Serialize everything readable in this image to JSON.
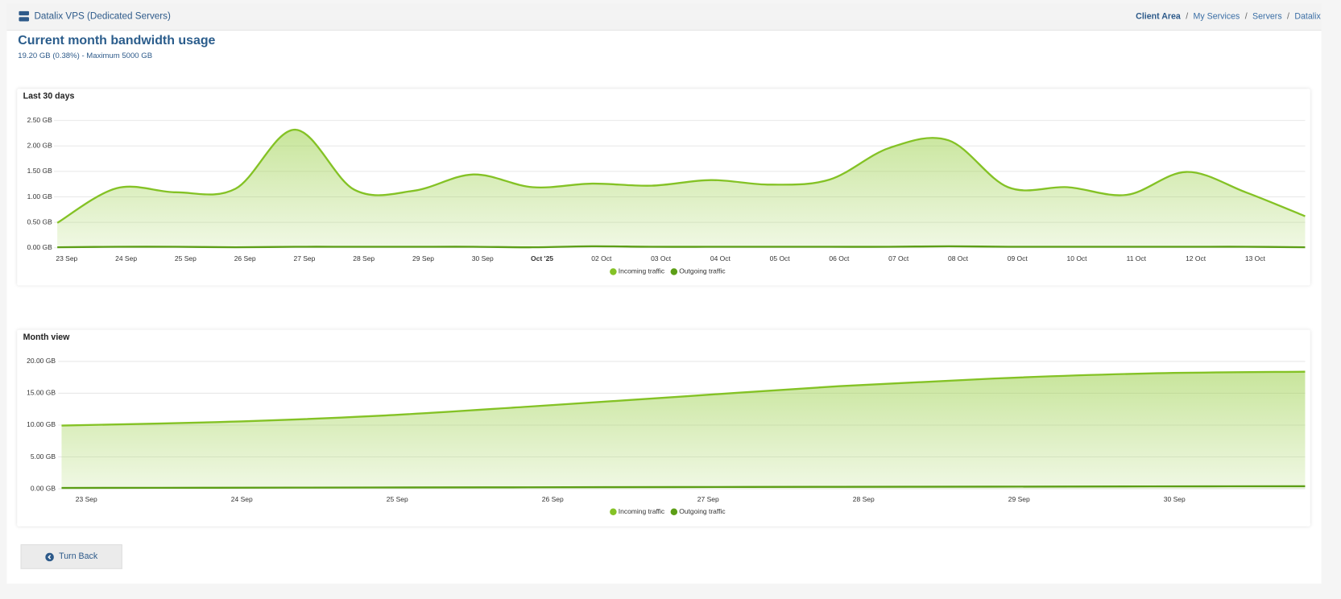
{
  "header": {
    "title": "Datalix VPS (Dedicated Servers)",
    "breadcrumb": [
      "Client Area",
      "My Services",
      "Servers",
      "Datalix VPS"
    ]
  },
  "heading": "Current month bandwidth usage",
  "subtitle": "19.20 GB (0.38%) - Maximum 5000 GB",
  "chart_data": [
    {
      "type": "area",
      "title": "Last 30 days",
      "categories": [
        "23 Sep",
        "24 Sep",
        "25 Sep",
        "26 Sep",
        "27 Sep",
        "28 Sep",
        "29 Sep",
        "30 Sep",
        "Oct '25",
        "02 Oct",
        "03 Oct",
        "04 Oct",
        "05 Oct",
        "06 Oct",
        "07 Oct",
        "08 Oct",
        "09 Oct",
        "10 Oct",
        "11 Oct",
        "12 Oct",
        "13 Oct",
        null
      ],
      "ylim": [
        0,
        2.5
      ],
      "yticks": [
        {
          "value": 0,
          "label": "0.00 GB"
        },
        {
          "value": 0.5,
          "label": "0.50 GB"
        },
        {
          "value": 1,
          "label": "1.00 GB"
        },
        {
          "value": 1.5,
          "label": "1.50 GB"
        },
        {
          "value": 2,
          "label": "2.00 GB"
        },
        {
          "value": 2.5,
          "label": "2.50 GB"
        }
      ],
      "grid": true,
      "legend": "bottom",
      "series": [
        {
          "name": "Incoming traffic",
          "color": "#84c225",
          "values": [
            0.49,
            1.17,
            1.09,
            1.16,
            2.32,
            1.14,
            1.12,
            1.44,
            1.19,
            1.26,
            1.22,
            1.33,
            1.24,
            1.34,
            1.96,
            2.11,
            1.19,
            1.19,
            1.04,
            1.49,
            1.09,
            0.62
          ]
        },
        {
          "name": "Outgoing traffic",
          "color": "#5c9e16",
          "values": [
            0.01,
            0.02,
            0.02,
            0.01,
            0.02,
            0.02,
            0.02,
            0.02,
            0.01,
            0.03,
            0.02,
            0.02,
            0.02,
            0.02,
            0.02,
            0.03,
            0.02,
            0.02,
            0.02,
            0.02,
            0.02,
            0.01
          ]
        }
      ]
    },
    {
      "type": "area",
      "title": "Month view",
      "categories": [
        "23 Sep",
        "24 Sep",
        "25 Sep",
        "26 Sep",
        "27 Sep",
        "28 Sep",
        "29 Sep",
        "30 Sep",
        null
      ],
      "ylim": [
        0,
        20
      ],
      "yticks": [
        {
          "value": 0,
          "label": "0.00 GB"
        },
        {
          "value": 5,
          "label": "5.00 GB"
        },
        {
          "value": 10,
          "label": "10.00 GB"
        },
        {
          "value": 15,
          "label": "15.00 GB"
        },
        {
          "value": 20,
          "label": "20.00 GB"
        }
      ],
      "grid": true,
      "legend": "bottom",
      "series": [
        {
          "name": "Incoming traffic",
          "color": "#84c225",
          "values": [
            9.93,
            10.47,
            11.41,
            12.89,
            14.5,
            16.11,
            17.32,
            18.12,
            18.39
          ]
        },
        {
          "name": "Outgoing traffic",
          "color": "#5c9e16",
          "values": [
            0.13,
            0.16,
            0.2,
            0.23,
            0.27,
            0.3,
            0.33,
            0.37,
            0.4
          ]
        }
      ]
    }
  ],
  "button": "Turn Back"
}
